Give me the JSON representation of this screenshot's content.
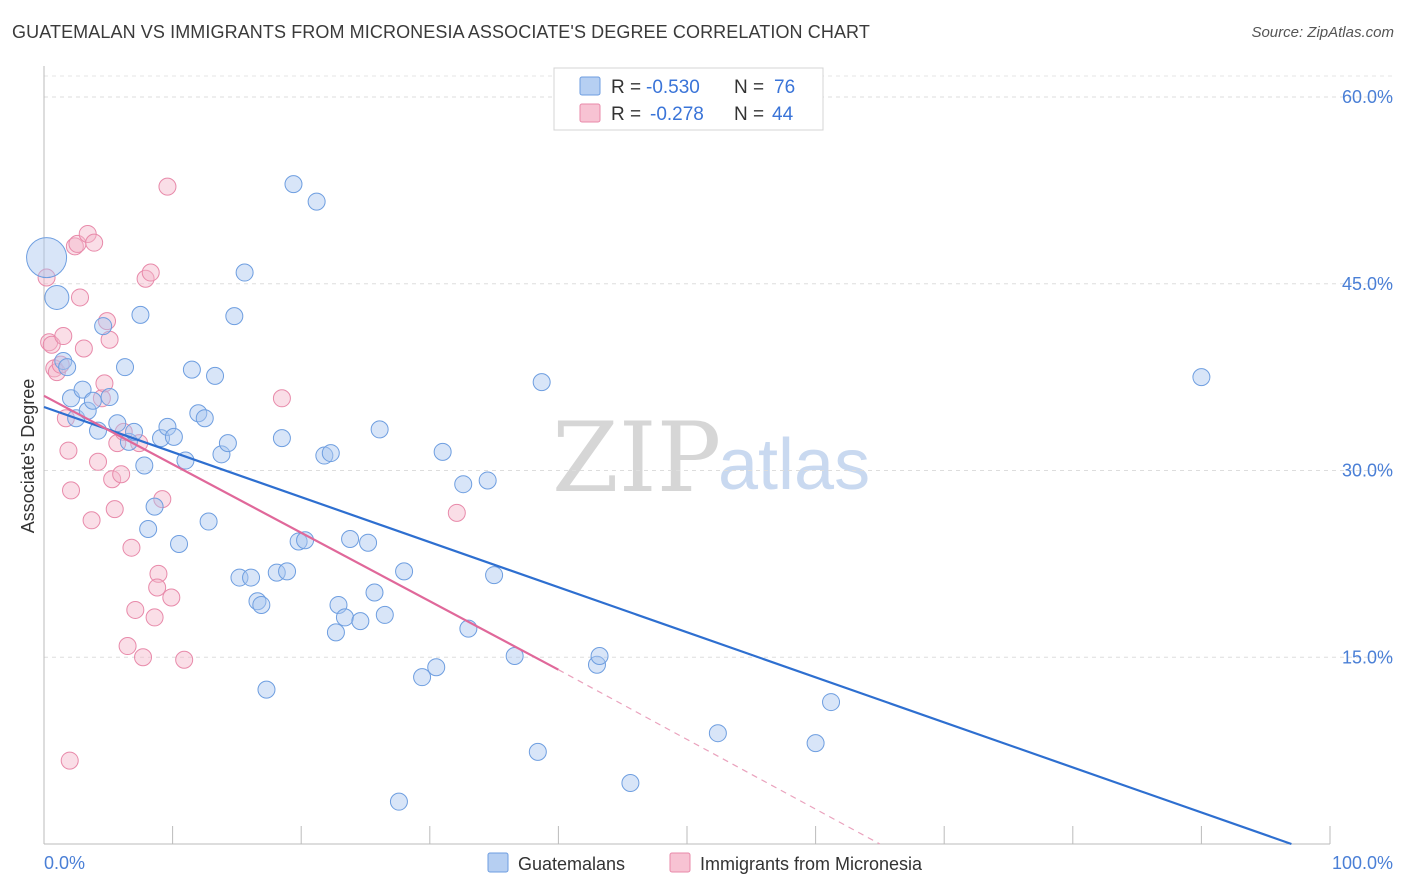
{
  "title": "GUATEMALAN VS IMMIGRANTS FROM MICRONESIA ASSOCIATE'S DEGREE CORRELATION CHART",
  "source": "Source: ZipAtlas.com",
  "watermark": {
    "zip": "ZIP",
    "atlas": "atlas"
  },
  "legend": {
    "r_label": "R =",
    "n_label": "N =",
    "rows": [
      {
        "r": "-0.530",
        "n": "76"
      },
      {
        "r": "-0.278",
        "n": "44"
      }
    ]
  },
  "bottom_legend": [
    "Guatemalans",
    "Immigrants from Micronesia"
  ],
  "chart_data": {
    "type": "scatter",
    "title": "GUATEMALAN VS IMMIGRANTS FROM MICRONESIA ASSOCIATE'S DEGREE CORRELATION CHART",
    "xlabel": "",
    "ylabel": "Associate's Degree",
    "xlim": [
      0,
      100
    ],
    "ylim": [
      0,
      60
    ],
    "x_tick_labels": [
      "0.0%",
      "100.0%"
    ],
    "y_ticks": [
      15,
      30,
      45,
      60
    ],
    "y_tick_labels": [
      "15.0%",
      "30.0%",
      "45.0%",
      "60.0%"
    ],
    "colors": {
      "guatemalan_fill": "#a9c6ef",
      "guatemalan_line": "#2e6fd0",
      "micronesia_fill": "#f5b5c9",
      "micronesia_line": "#e0689a"
    },
    "series": [
      {
        "name": "Guatemalans",
        "r": -0.53,
        "n": 76,
        "trend": {
          "x": [
            0,
            97
          ],
          "y": [
            35.1,
            0
          ]
        },
        "points": [
          [
            0.2,
            47.1
          ],
          [
            1.0,
            43.9
          ],
          [
            1.5,
            38.8
          ],
          [
            1.8,
            38.3
          ],
          [
            2.1,
            35.8
          ],
          [
            2.5,
            34.2
          ],
          [
            3.0,
            36.5
          ],
          [
            3.4,
            34.8
          ],
          [
            3.8,
            35.6
          ],
          [
            4.2,
            33.2
          ],
          [
            4.6,
            41.6
          ],
          [
            5.1,
            35.9
          ],
          [
            5.7,
            33.8
          ],
          [
            6.3,
            38.3
          ],
          [
            6.6,
            32.3
          ],
          [
            7.0,
            33.1
          ],
          [
            7.5,
            42.5
          ],
          [
            7.8,
            30.4
          ],
          [
            8.1,
            25.3
          ],
          [
            8.6,
            27.1
          ],
          [
            9.1,
            32.6
          ],
          [
            9.6,
            33.5
          ],
          [
            10.1,
            32.7
          ],
          [
            10.5,
            24.1
          ],
          [
            11.0,
            30.8
          ],
          [
            11.5,
            38.1
          ],
          [
            12.0,
            34.6
          ],
          [
            12.5,
            34.2
          ],
          [
            12.8,
            25.9
          ],
          [
            13.3,
            37.6
          ],
          [
            13.8,
            31.3
          ],
          [
            14.3,
            32.2
          ],
          [
            14.8,
            42.4
          ],
          [
            15.2,
            21.4
          ],
          [
            15.6,
            45.9
          ],
          [
            16.1,
            21.4
          ],
          [
            16.6,
            19.5
          ],
          [
            16.9,
            19.2
          ],
          [
            17.3,
            12.4
          ],
          [
            18.1,
            21.8
          ],
          [
            18.5,
            32.6
          ],
          [
            18.9,
            21.9
          ],
          [
            19.4,
            53.0
          ],
          [
            19.8,
            24.3
          ],
          [
            20.3,
            24.4
          ],
          [
            21.2,
            51.6
          ],
          [
            21.8,
            31.2
          ],
          [
            22.3,
            31.4
          ],
          [
            22.7,
            17.0
          ],
          [
            22.9,
            19.2
          ],
          [
            23.4,
            18.2
          ],
          [
            23.8,
            24.5
          ],
          [
            24.6,
            17.9
          ],
          [
            25.2,
            24.2
          ],
          [
            25.7,
            20.2
          ],
          [
            26.1,
            33.3
          ],
          [
            26.5,
            18.4
          ],
          [
            27.6,
            3.4
          ],
          [
            28.0,
            21.9
          ],
          [
            29.4,
            13.4
          ],
          [
            30.5,
            14.2
          ],
          [
            31.0,
            31.5
          ],
          [
            32.6,
            28.9
          ],
          [
            33.0,
            17.3
          ],
          [
            34.5,
            29.2
          ],
          [
            35.0,
            21.6
          ],
          [
            36.6,
            15.1
          ],
          [
            38.4,
            7.4
          ],
          [
            38.7,
            37.1
          ],
          [
            43.0,
            14.4
          ],
          [
            43.2,
            15.1
          ],
          [
            45.6,
            4.9
          ],
          [
            52.4,
            8.9
          ],
          [
            60.0,
            8.1
          ],
          [
            61.2,
            11.4
          ],
          [
            90.0,
            37.5
          ]
        ]
      },
      {
        "name": "Immigrants from Micronesia",
        "r": -0.278,
        "n": 44,
        "trend": {
          "x": [
            0,
            40
          ],
          "y": [
            36.0,
            14.0
          ]
        },
        "trend_dashed": {
          "x": [
            40,
            65
          ],
          "y": [
            14.0,
            0
          ]
        },
        "points": [
          [
            0.2,
            45.5
          ],
          [
            0.4,
            40.3
          ],
          [
            0.6,
            40.1
          ],
          [
            0.8,
            38.2
          ],
          [
            1.0,
            37.9
          ],
          [
            1.3,
            38.5
          ],
          [
            1.5,
            40.8
          ],
          [
            1.7,
            34.2
          ],
          [
            1.9,
            31.6
          ],
          [
            2.1,
            28.4
          ],
          [
            2.4,
            48.0
          ],
          [
            2.6,
            48.2
          ],
          [
            2.8,
            43.9
          ],
          [
            3.1,
            39.8
          ],
          [
            3.4,
            49.0
          ],
          [
            3.7,
            26.0
          ],
          [
            3.9,
            48.3
          ],
          [
            4.2,
            30.7
          ],
          [
            4.5,
            35.8
          ],
          [
            4.7,
            37.0
          ],
          [
            4.9,
            42.0
          ],
          [
            5.1,
            40.5
          ],
          [
            5.3,
            29.3
          ],
          [
            5.5,
            26.9
          ],
          [
            5.7,
            32.2
          ],
          [
            6.0,
            29.7
          ],
          [
            6.2,
            33.1
          ],
          [
            6.5,
            15.9
          ],
          [
            6.8,
            23.8
          ],
          [
            7.1,
            18.8
          ],
          [
            7.4,
            32.2
          ],
          [
            7.7,
            15.0
          ],
          [
            7.9,
            45.4
          ],
          [
            8.3,
            45.9
          ],
          [
            8.6,
            18.2
          ],
          [
            8.9,
            21.7
          ],
          [
            8.8,
            20.6
          ],
          [
            9.2,
            27.7
          ],
          [
            9.6,
            52.8
          ],
          [
            9.9,
            19.8
          ],
          [
            10.9,
            14.8
          ],
          [
            18.5,
            35.8
          ],
          [
            32.1,
            26.6
          ],
          [
            2.0,
            6.7
          ]
        ]
      }
    ]
  }
}
